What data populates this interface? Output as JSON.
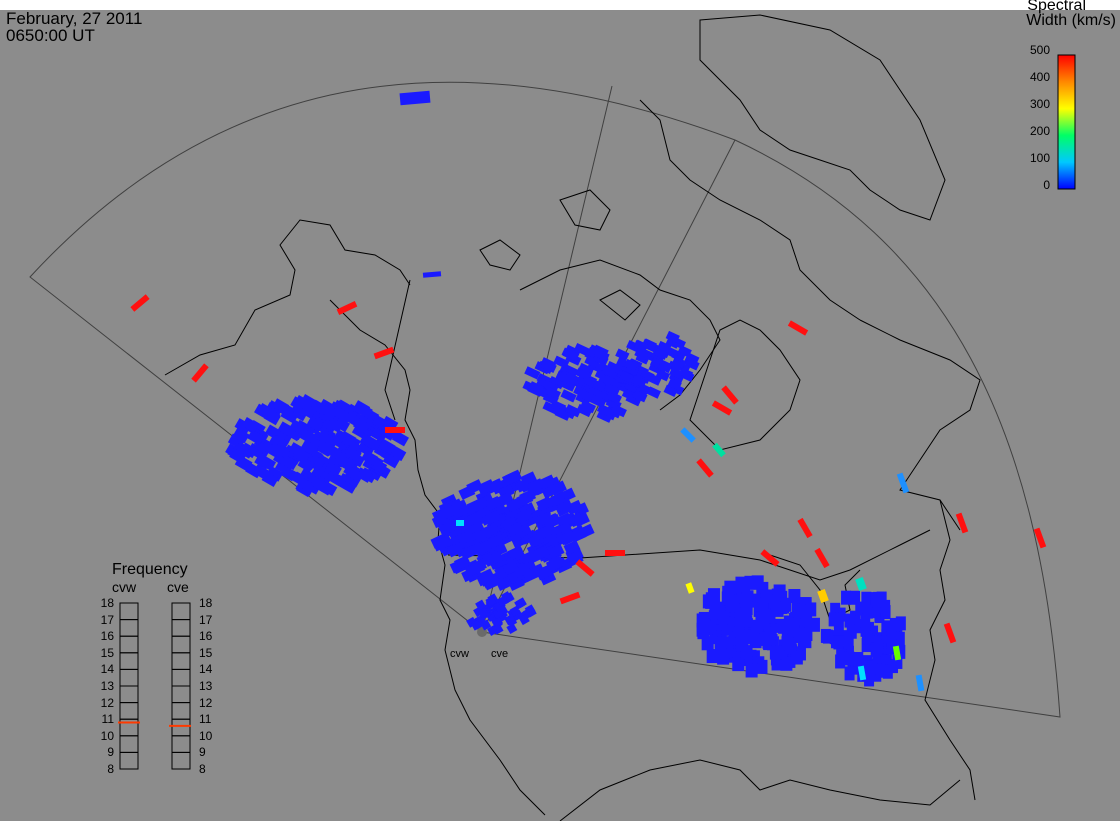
{
  "header": {
    "date": "February, 27 2011",
    "time": "0650:00 UT"
  },
  "colorbar": {
    "title_line1": "Spectral",
    "title_line2": "Width (km/s)",
    "ticks": [
      "500",
      "400",
      "300",
      "200",
      "100",
      "0"
    ],
    "range": [
      0,
      500
    ],
    "colors": [
      "#0000ff",
      "#00c8ff",
      "#00ff66",
      "#ffff00",
      "#ff8800",
      "#ff0000"
    ]
  },
  "frequency_panel": {
    "title": "Frequency",
    "radars": [
      {
        "name": "cvw",
        "value_mhz": 10.8
      },
      {
        "name": "cve",
        "value_mhz": 10.6
      }
    ],
    "scale": [
      "18",
      "17",
      "16",
      "15",
      "14",
      "13",
      "12",
      "11",
      "10",
      "9",
      "8"
    ]
  },
  "radars": [
    {
      "name": "cvw"
    },
    {
      "name": "cve"
    }
  ],
  "colors": {
    "background": "#8c8c8c",
    "coast": "#000000",
    "fov": "#404040",
    "marker": "#ff3a00"
  }
}
